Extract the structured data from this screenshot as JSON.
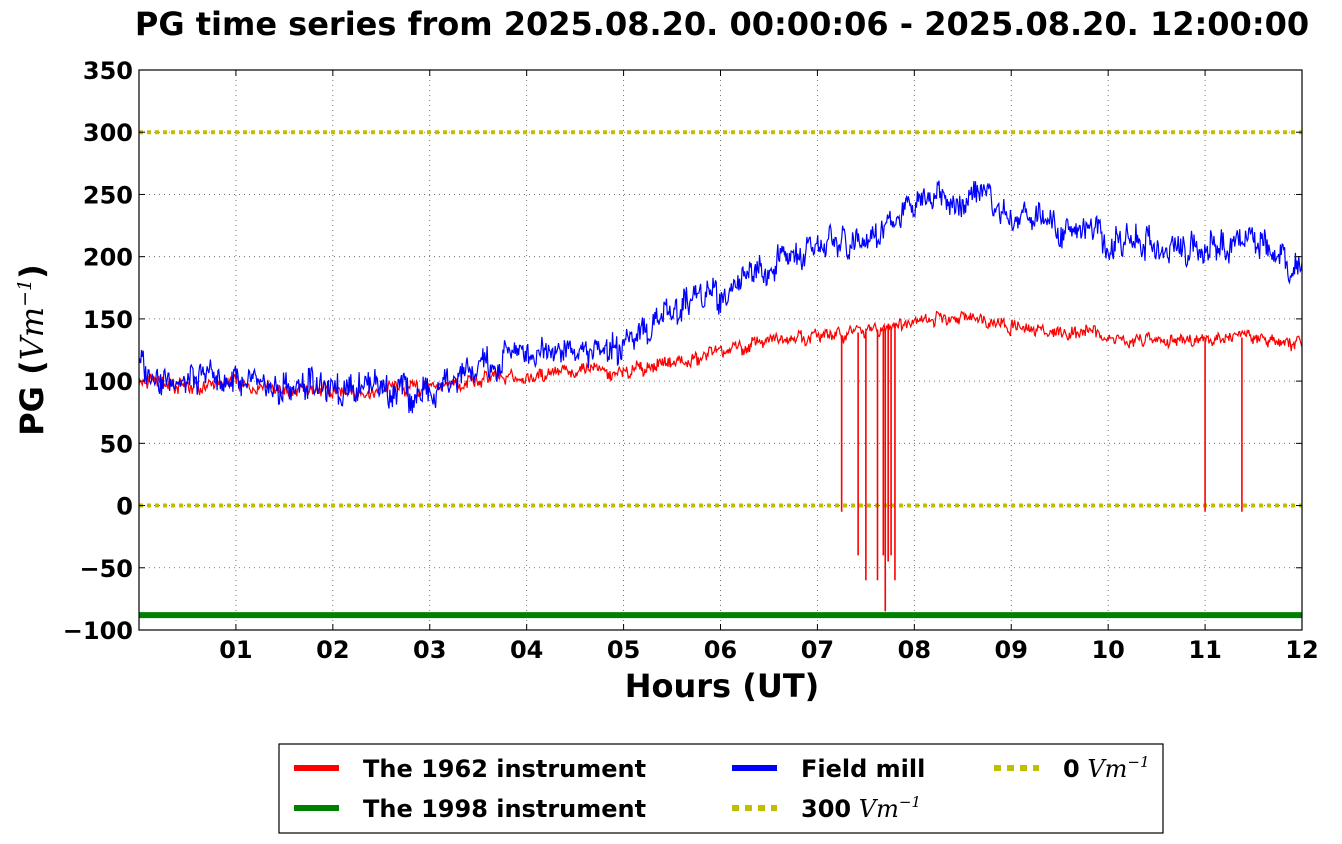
{
  "chart_data": {
    "type": "line",
    "title": "PG time series from 2025.08.20. 00:00:06 - 2025.08.20. 12:00:00",
    "xlabel": "Hours (UT)",
    "ylabel": "PG (",
    "ylabel_unit": "Vm",
    "ylabel_exp": "−1",
    "ylabel_close": ")",
    "xlim": [
      0,
      12
    ],
    "ylim": [
      -100,
      350
    ],
    "xticks": [
      1,
      2,
      3,
      4,
      5,
      6,
      7,
      8,
      9,
      10,
      11,
      12
    ],
    "xtick_labels": [
      "01",
      "02",
      "03",
      "04",
      "05",
      "06",
      "07",
      "08",
      "09",
      "10",
      "11",
      "12"
    ],
    "yticks": [
      -100,
      -50,
      0,
      50,
      100,
      150,
      200,
      250,
      300,
      350
    ],
    "ytick_labels": [
      "−100",
      "−50",
      "0",
      "50",
      "100",
      "150",
      "200",
      "250",
      "300",
      "350"
    ],
    "grid": true,
    "legend_position": "bottom-center",
    "series": [
      {
        "name": "The 1962 instrument",
        "color": "#ff0000",
        "x": [
          0,
          0.25,
          0.5,
          0.75,
          1,
          1.25,
          1.5,
          1.75,
          2,
          2.25,
          2.5,
          2.75,
          3,
          3.25,
          3.5,
          3.75,
          4,
          4.25,
          4.5,
          4.75,
          5,
          5.25,
          5.5,
          5.75,
          6,
          6.25,
          6.5,
          6.75,
          7,
          7.25,
          7.5,
          7.75,
          8,
          8.25,
          8.5,
          8.75,
          9,
          9.25,
          9.5,
          9.75,
          10,
          10.25,
          10.5,
          10.75,
          11,
          11.25,
          11.5,
          11.75,
          12
        ],
        "y": [
          102,
          98,
          95,
          96,
          98,
          96,
          94,
          93,
          92,
          92,
          94,
          94,
          95,
          98,
          100,
          103,
          105,
          107,
          107,
          108,
          107,
          112,
          115,
          118,
          123,
          128,
          132,
          135,
          137,
          137,
          140,
          143,
          148,
          150,
          152,
          148,
          143,
          140,
          140,
          140,
          135,
          133,
          133,
          133,
          133,
          135,
          135,
          132,
          130
        ]
      },
      {
        "name": "The 1998 instrument",
        "color": "#008000",
        "x": [
          0,
          12
        ],
        "y": [
          -88,
          -88
        ]
      },
      {
        "name": "Field mill",
        "color": "#0000ff",
        "x": [
          0,
          0.25,
          0.5,
          0.75,
          1,
          1.25,
          1.5,
          1.75,
          2,
          2.25,
          2.5,
          2.75,
          3,
          3.25,
          3.5,
          3.75,
          4,
          4.25,
          4.5,
          4.75,
          5,
          5.25,
          5.5,
          5.75,
          6,
          6.25,
          6.5,
          6.75,
          7,
          7.25,
          7.5,
          7.75,
          8,
          8.25,
          8.5,
          8.75,
          9,
          9.25,
          9.5,
          9.75,
          10,
          10.25,
          10.5,
          10.75,
          11,
          11.25,
          11.5,
          11.75,
          12
        ],
        "y": [
          112,
          102,
          100,
          102,
          105,
          95,
          93,
          96,
          93,
          92,
          95,
          90,
          88,
          103,
          108,
          118,
          125,
          125,
          122,
          125,
          130,
          140,
          155,
          168,
          170,
          185,
          190,
          200,
          210,
          212,
          215,
          228,
          245,
          250,
          240,
          250,
          235,
          232,
          222,
          225,
          212,
          215,
          208,
          205,
          210,
          205,
          215,
          200,
          190
        ]
      },
      {
        "name": "300 Vm−1",
        "color": "#bfbf00",
        "style": "dotted",
        "x": [
          0,
          12
        ],
        "y": [
          300,
          300
        ]
      },
      {
        "name": "0 Vm−1",
        "color": "#bfbf00",
        "style": "dotted",
        "x": [
          0,
          12
        ],
        "y": [
          0,
          0
        ]
      }
    ],
    "spikes": {
      "series": "The 1962 instrument",
      "color": "#ff0000",
      "x": [
        7.25,
        7.42,
        7.5,
        7.62,
        7.68,
        7.7,
        7.73,
        7.76,
        7.8,
        11,
        11.38
      ],
      "y": [
        -5,
        -40,
        -60,
        -60,
        -40,
        -85,
        -45,
        -40,
        -60,
        -5,
        -5
      ]
    },
    "legend": {
      "entries": [
        {
          "label": "The 1962 instrument",
          "unit": "",
          "color": "#ff0000",
          "style": "solid"
        },
        {
          "label": "The 1998 instrument",
          "unit": "",
          "color": "#008000",
          "style": "solid"
        },
        {
          "label": "Field mill",
          "unit": "",
          "color": "#0000ff",
          "style": "solid"
        },
        {
          "label": "300",
          "unit": "Vm",
          "exp": "−1",
          "color": "#bfbf00",
          "style": "dotted"
        },
        {
          "label": "0",
          "unit": "Vm",
          "exp": "−1",
          "color": "#bfbf00",
          "style": "dotted"
        }
      ]
    }
  }
}
